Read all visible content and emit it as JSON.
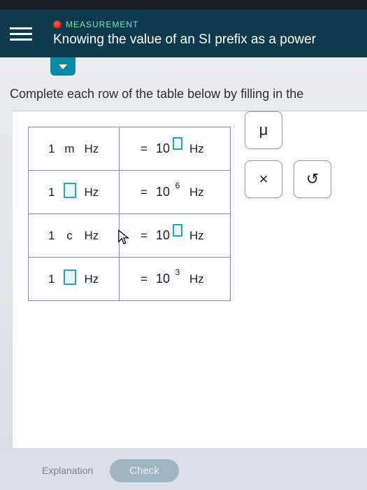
{
  "colors": {
    "header_bg": "#0f3a4e",
    "accent": "#0b8aa6",
    "category_text": "#7fe0b8",
    "blank_border": "#2aa0c2",
    "blank_fill": "#eaf6fa",
    "table_border": "#8a8f96",
    "work_bg": "#fbfcfd"
  },
  "header": {
    "category": "MEASUREMENT",
    "title": "Knowing the value of an SI prefix as a power"
  },
  "instruction": "Complete each row of the table below by filling in the",
  "table": {
    "rows": [
      {
        "one": "1",
        "prefix": "m",
        "prefix_is_blank": false,
        "unit_left": "Hz",
        "eq": "=",
        "base": "10",
        "exponent": "",
        "exponent_is_blank": true,
        "unit_right": "Hz"
      },
      {
        "one": "1",
        "prefix": "",
        "prefix_is_blank": true,
        "unit_left": "Hz",
        "eq": "=",
        "base": "10",
        "exponent": "6",
        "exponent_is_blank": false,
        "unit_right": "Hz"
      },
      {
        "one": "1",
        "prefix": "c",
        "prefix_is_blank": false,
        "unit_left": "Hz",
        "eq": "=",
        "base": "10",
        "exponent": "",
        "exponent_is_blank": true,
        "unit_right": "Hz"
      },
      {
        "one": "1",
        "prefix": "",
        "prefix_is_blank": true,
        "unit_left": "Hz",
        "eq": "=",
        "base": "10",
        "exponent": "3",
        "exponent_is_blank": false,
        "unit_right": "Hz"
      }
    ]
  },
  "palette": {
    "mu": "μ",
    "times": "×",
    "reset": "↺"
  },
  "footer": {
    "explanation": "Explanation",
    "check": "Check"
  }
}
